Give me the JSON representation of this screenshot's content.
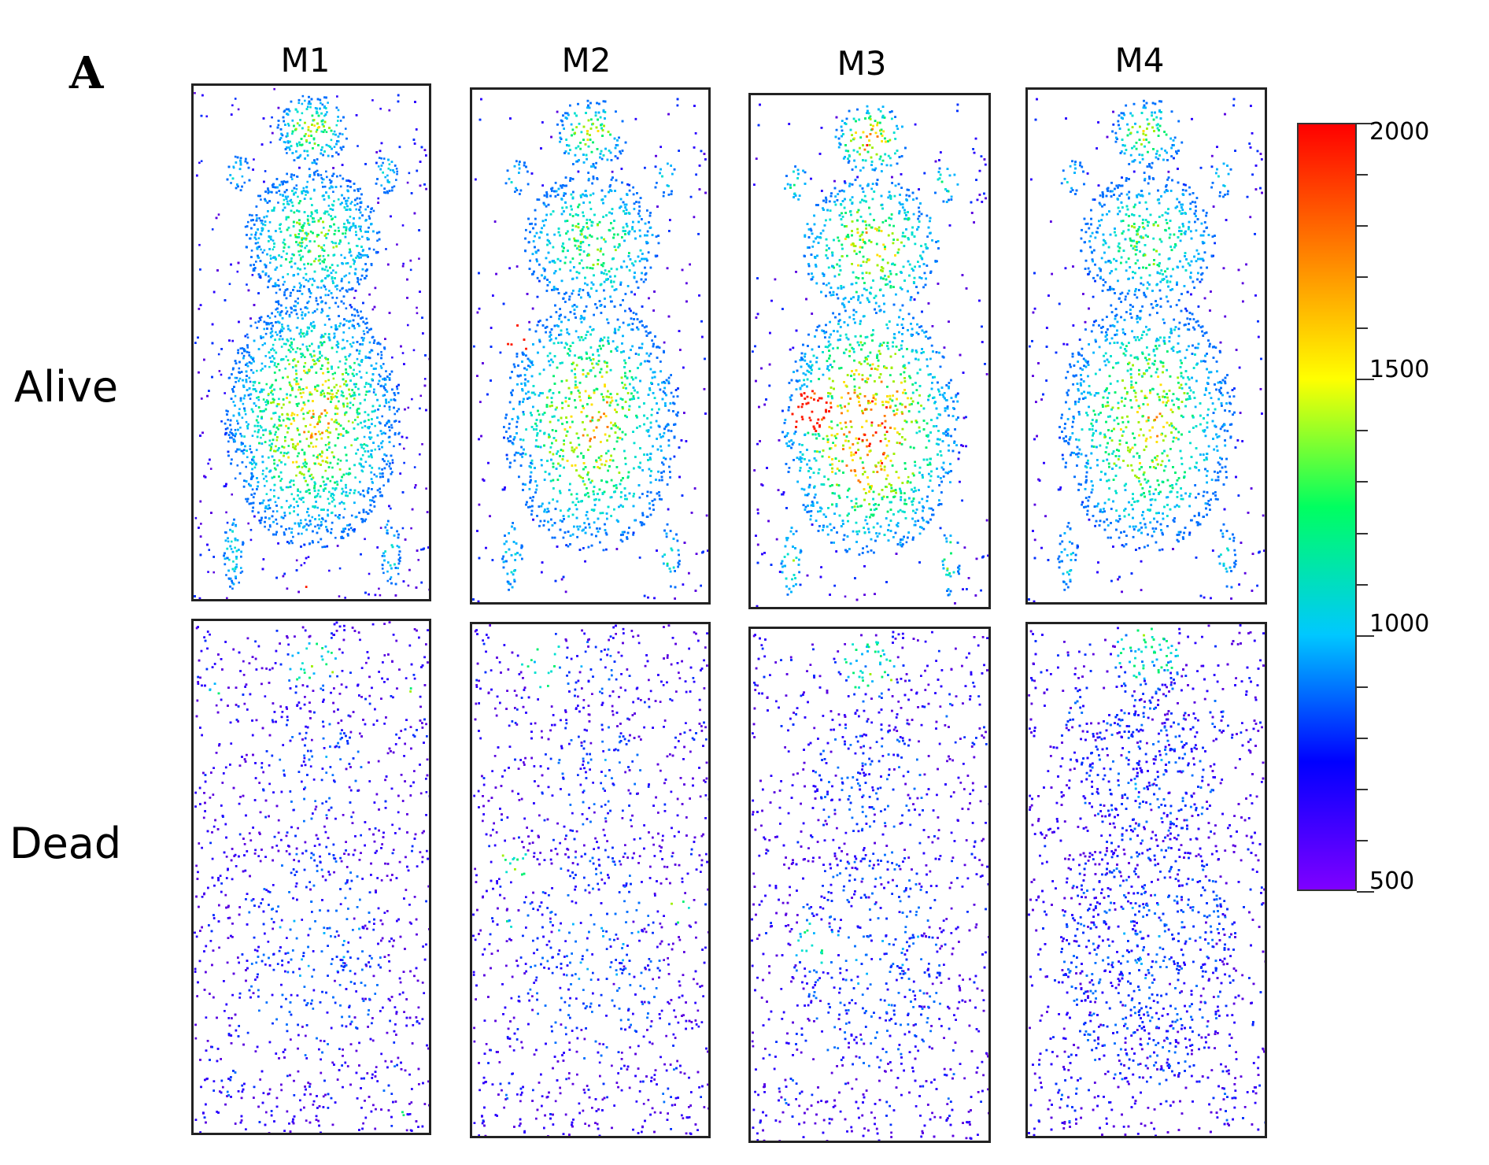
{
  "figure": {
    "panel_letter": "A",
    "columns": [
      "M1",
      "M2",
      "M3",
      "M4"
    ],
    "rows": [
      "Alive",
      "Dead"
    ]
  },
  "colorbar": {
    "labels": [
      "2000",
      "1500",
      "1000",
      "500"
    ],
    "max": 2000,
    "min": 500,
    "colormap": [
      "#7f00ff",
      "#0000ff",
      "#00c8ff",
      "#00ff60",
      "#ffff00",
      "#ff8000",
      "#ff0000"
    ]
  }
}
